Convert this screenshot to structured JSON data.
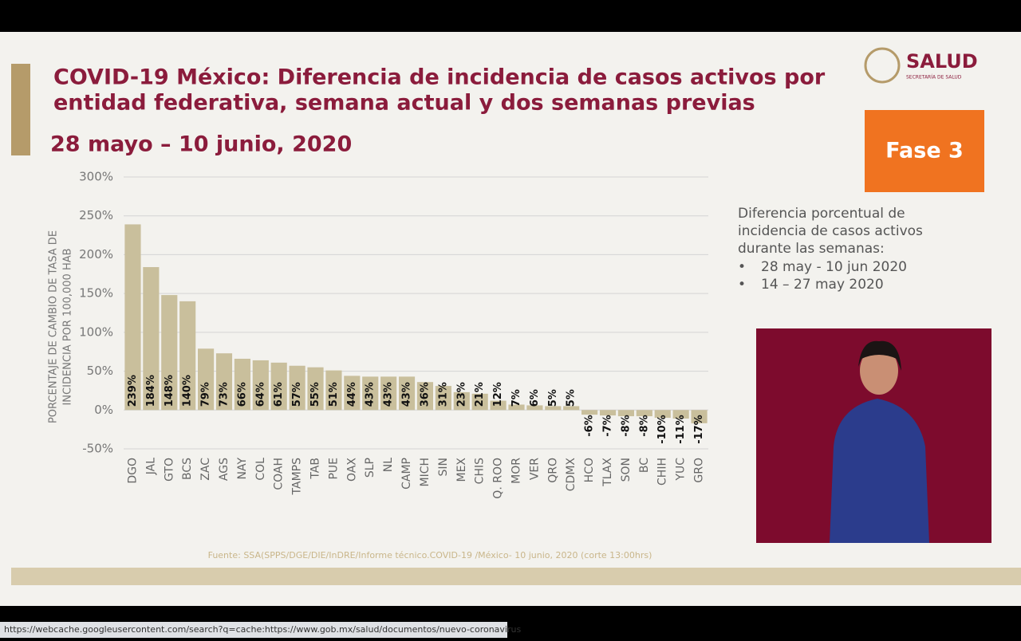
{
  "header": {
    "logo": "SALUD",
    "logo_sub": "SECRETARÍA DE SALUD",
    "phase": "Fase 3"
  },
  "sidebar": {
    "lines": [
      "Diferencia porcentual de",
      "incidencia de  casos activos",
      "durante las semanas:"
    ],
    "bullet": "•",
    "items": [
      "28 may - 10 jun 2020",
      "14 – 27 may 2020"
    ]
  },
  "footer": {
    "source": "Fuente: SSA(SPPS/DGE/DIE/InDRE/Informe técnico.COVID-19 /México- 10 junio, 2020 (corte 13:00hrs)"
  },
  "status_bar": {
    "url": "https://webcache.googleusercontent.com/search?q=cache:https://www.gob.mx/salud/documentos/nuevo-coronavirus"
  },
  "chart_data": {
    "type": "bar",
    "title": [
      "COVID-19 México: Diferencia de incidencia de casos activos por",
      "entidad federativa, semana actual y dos semanas previas"
    ],
    "subtitle": "28 mayo – 10 junio, 2020",
    "ylabel": [
      "PORCENTAJE DE CAMBIO DE TASA DE",
      "INCIDENCIA  POR 100,000 HAB"
    ],
    "categories": [
      "DGO",
      "JAL",
      "GTO",
      "BCS",
      "ZAC",
      "AGS",
      "NAY",
      "COL",
      "COAH",
      "TAMPS",
      "TAB",
      "PUE",
      "OAX",
      "SLP",
      "NL",
      "CAMP",
      "MICH",
      "SIN",
      "MEX",
      "CHIS",
      "Q. ROO",
      "MOR",
      "VER",
      "QRO",
      "CDMX",
      "HCO",
      "TLAX",
      "SON",
      "BC",
      "CHIH",
      "YUC",
      "GRO"
    ],
    "values": [
      239,
      184,
      148,
      140,
      79,
      73,
      66,
      64,
      61,
      57,
      55,
      51,
      44,
      43,
      43,
      43,
      36,
      31,
      23,
      21,
      12,
      7,
      6,
      5,
      5,
      -6,
      -7,
      -8,
      -8,
      -10,
      -11,
      -17
    ],
    "value_labels": [
      "239%",
      "184%",
      "148%",
      "140%",
      "79%",
      "73%",
      "66%",
      "64%",
      "61%",
      "57%",
      "55%",
      "51%",
      "44%",
      "43%",
      "43%",
      "43%",
      "36%",
      "31%",
      "23%",
      "21%",
      "12%",
      "7%",
      "6%",
      "5%",
      "5%",
      "-6%",
      "-7%",
      "-8%",
      "-8%",
      "-10%",
      "-11%",
      "-17%"
    ],
    "color": "#c9bf9c",
    "ylim": [
      -50,
      300
    ],
    "yticks": [
      {
        "value": -50,
        "label": "-50%"
      },
      {
        "value": 0,
        "label": "0%"
      },
      {
        "value": 50,
        "label": "50%"
      },
      {
        "value": 100,
        "label": "100%"
      },
      {
        "value": 150,
        "label": "150%"
      },
      {
        "value": 200,
        "label": "200%"
      },
      {
        "value": 250,
        "label": "250%"
      },
      {
        "value": 300,
        "label": "300%"
      }
    ],
    "grid": true
  }
}
